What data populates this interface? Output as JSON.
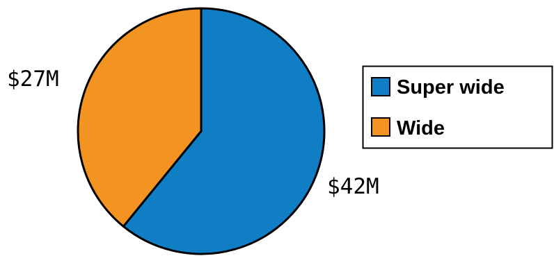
{
  "chart_data": {
    "type": "pie",
    "title": "",
    "slices": [
      {
        "name": "Super wide",
        "value": 42,
        "label": "$42M",
        "color": "#0f7ec5"
      },
      {
        "name": "Wide",
        "value": 27,
        "label": "$27M",
        "color": "#f39422"
      }
    ],
    "start_angle": "12 o'clock",
    "direction": "clockwise",
    "legend": {
      "placement": "right",
      "items": [
        "Super wide",
        "Wide"
      ]
    }
  }
}
